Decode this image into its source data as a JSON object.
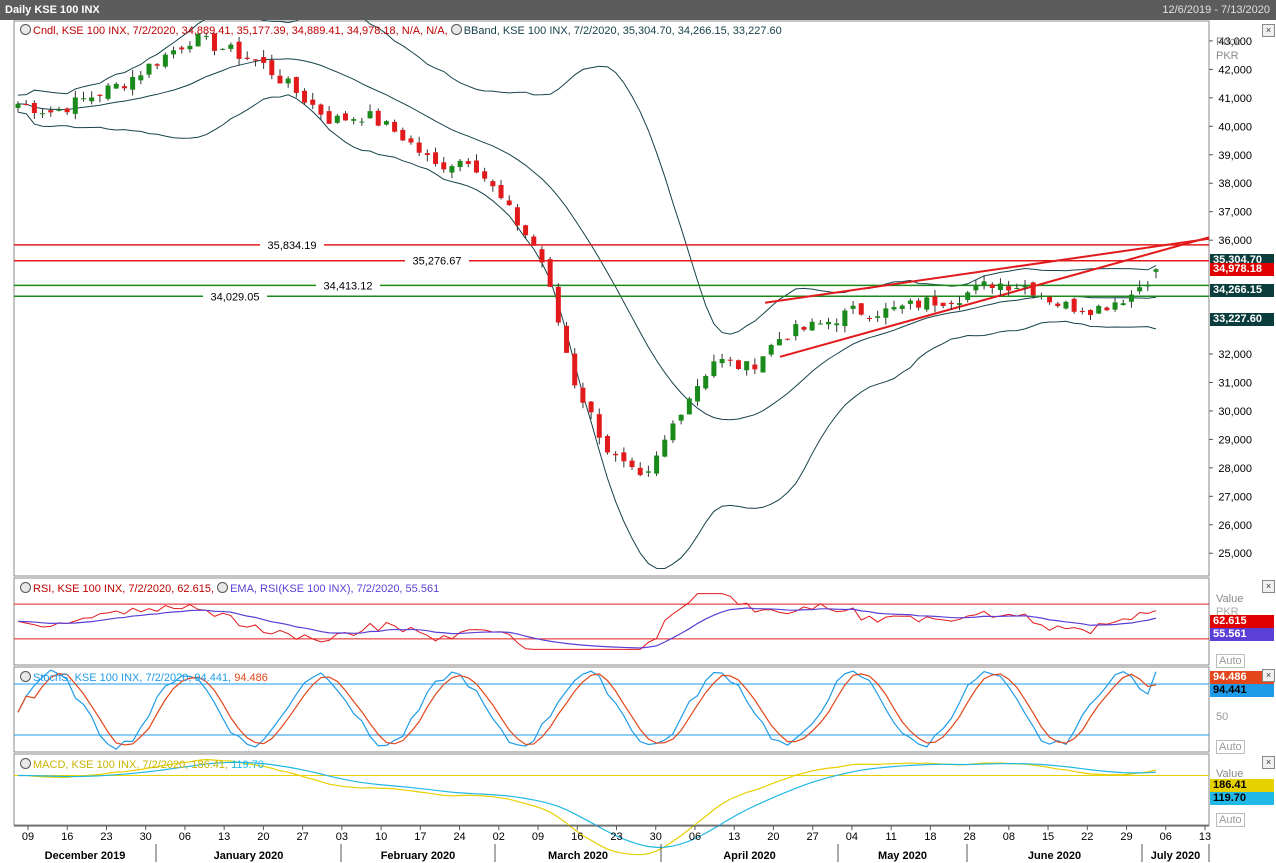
{
  "window": {
    "title": "Daily KSE 100 INX",
    "date_range": "12/6/2019 - 7/13/2020"
  },
  "price_panel": {
    "legend_cndl": "Cndl, KSE 100 INX, 7/2/2020, 34,889.41, 35,177.39, 34,889.41, 34,978.18, N/A, N/A,",
    "legend_bband": "BBand, KSE 100 INX, 7/2/2020, 35,304.70, 34,266.15, 33,227.60",
    "axis_title_1": "Price",
    "axis_title_2": "PKR",
    "y_ticks": [
      "43,000",
      "42,000",
      "41,000",
      "40,000",
      "39,000",
      "38,000",
      "37,000",
      "36,000",
      "32,000",
      "31,000",
      "30,000",
      "29,000",
      "28,000",
      "27,000",
      "26,000",
      "25,000"
    ],
    "hlines": [
      {
        "label": "35,834.19",
        "value": 35834.19,
        "color": "#e31a1c"
      },
      {
        "label": "35,276.67",
        "value": 35276.67,
        "color": "#e31a1c"
      },
      {
        "label": "34,413.12",
        "value": 34413.12,
        "color": "#1a8a1a"
      },
      {
        "label": "34,029.05",
        "value": 34029.05,
        "color": "#1a8a1a"
      }
    ],
    "tags": [
      {
        "label": "35,304.70",
        "value": 35304.7,
        "bg": "#0b3d3d"
      },
      {
        "label": "34,978.18",
        "value": 34978.18,
        "bg": "#e00000"
      },
      {
        "label": "34,266.15",
        "value": 34266.15,
        "bg": "#0b3d3d"
      },
      {
        "label": "33,227.60",
        "value": 33227.6,
        "bg": "#0b3d3d"
      }
    ]
  },
  "rsi_panel": {
    "legend_rsi": "RSI, KSE 100 INX, 7/2/2020, 62.615,",
    "legend_ema": "EMA, RSI(KSE 100 INX), 7/2/2020, 55.561",
    "axis_title": "Value",
    "axis_unit": "PKR",
    "tag_rsi": "62.615",
    "tag_ema": "55.561",
    "auto": "Auto"
  },
  "stoch_panel": {
    "legend": "StochS, KSE 100 INX, 7/2/2020, 94.441,",
    "legend_2": "94.486",
    "tag_1": "94.486",
    "tag_2": "94.441",
    "mid": "50",
    "auto": "Auto"
  },
  "macd_panel": {
    "legend": "MACD, KSE 100 INX, 7/2/2020, 186.41,",
    "legend_2": "119.70",
    "axis_title": "Value",
    "tag_1": "186.41",
    "tag_2": "119.70",
    "auto": "Auto"
  },
  "x_axis": {
    "days": [
      "09",
      "16",
      "23",
      "30",
      "06",
      "13",
      "20",
      "27",
      "03",
      "10",
      "17",
      "24",
      "02",
      "09",
      "16",
      "23",
      "30",
      "06",
      "13",
      "20",
      "27",
      "04",
      "11",
      "18",
      "28",
      "08",
      "15",
      "22",
      "29",
      "06",
      "13"
    ],
    "months": [
      "December 2019",
      "January 2020",
      "February 2020",
      "March 2020",
      "April 2020",
      "May 2020",
      "June 2020",
      "July 2020"
    ]
  },
  "colors": {
    "up": "#1a8a1a",
    "down": "#e31a1c",
    "band": "#17424a",
    "rsi": "#e31a1c",
    "ema": "#5b3fd6",
    "stoch_k": "#1e9be8",
    "stoch_d": "#e3461a",
    "macd": "#e6d000",
    "signal": "#22b8e6"
  },
  "chart_data": {
    "type": "candlestick",
    "x_start": "2019-12-06",
    "x_end": "2020-07-13",
    "ylim": [
      24200,
      43700
    ],
    "close_keypoints": [
      [
        0,
        40800
      ],
      [
        10,
        40500
      ],
      [
        20,
        41000
      ],
      [
        30,
        41500
      ],
      [
        40,
        42300
      ],
      [
        50,
        43100
      ],
      [
        60,
        42700
      ],
      [
        70,
        42200
      ],
      [
        80,
        41200
      ],
      [
        90,
        40200
      ],
      [
        100,
        40400
      ],
      [
        110,
        39700
      ],
      [
        120,
        38600
      ],
      [
        130,
        38900
      ],
      [
        140,
        37200
      ],
      [
        150,
        35500
      ],
      [
        160,
        31000
      ],
      [
        170,
        28500
      ],
      [
        180,
        27400
      ],
      [
        190,
        30000
      ],
      [
        200,
        31800
      ],
      [
        210,
        31500
      ],
      [
        220,
        32700
      ],
      [
        230,
        33000
      ],
      [
        240,
        33500
      ],
      [
        250,
        33500
      ],
      [
        260,
        33800
      ],
      [
        270,
        34000
      ],
      [
        280,
        34500
      ],
      [
        290,
        34400
      ],
      [
        300,
        33700
      ],
      [
        310,
        33600
      ],
      [
        320,
        34100
      ],
      [
        327,
        34978
      ]
    ]
  }
}
